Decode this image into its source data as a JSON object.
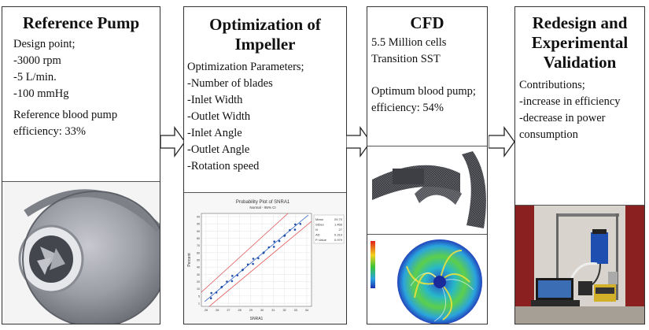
{
  "panels": [
    {
      "title": "Reference Pump",
      "lines_a": [
        "Design point;",
        "-3000 rpm",
        "-5 L/min.",
        "-100 mmHg"
      ],
      "lines_b": [
        "Reference blood pump",
        "efficiency: 33%"
      ]
    },
    {
      "title_1": "Optimization of",
      "title_2": "Impeller",
      "lines": [
        "Optimization Parameters;",
        "-Number of blades",
        "-Inlet Width",
        "-Outlet Width",
        "-Inlet Angle",
        "-Outlet Angle",
        "-Rotation speed"
      ]
    },
    {
      "title": "CFD",
      "lines_a": [
        "5.5 Million cells",
        "Transition SST"
      ],
      "lines_b": [
        "Optimum blood pump;",
        "efficiency: 54%"
      ]
    },
    {
      "title_1": "Redesign and",
      "title_2": "Experimental",
      "title_3": "Validation",
      "lines": [
        "Contributions;",
        "-increase in efficiency",
        "-decrease in power",
        "consumption"
      ]
    }
  ],
  "probability_plot": {
    "title": "Probability Plot of SNRA1",
    "subtitle": "Normal - 95% CI",
    "xlabel": "SNRA1",
    "ylabel": "Percent",
    "yticks": [
      "99",
      "95",
      "90",
      "80",
      "70",
      "60",
      "50",
      "40",
      "30",
      "20",
      "10",
      "5",
      "1"
    ],
    "xticks": [
      "25",
      "26",
      "27",
      "28",
      "29",
      "30",
      "31",
      "32",
      "33",
      "34"
    ],
    "stats_labels": [
      "Mean",
      "StDev",
      "N",
      "AD",
      "P-Value"
    ],
    "stats_values": [
      "29.70",
      "1.466",
      "27",
      "0.319",
      "0.979"
    ]
  },
  "colors": {
    "border": "#333333",
    "arrow_fill": "#ffffff",
    "point": "#1f4fa8",
    "ci_line": "#e05050"
  }
}
